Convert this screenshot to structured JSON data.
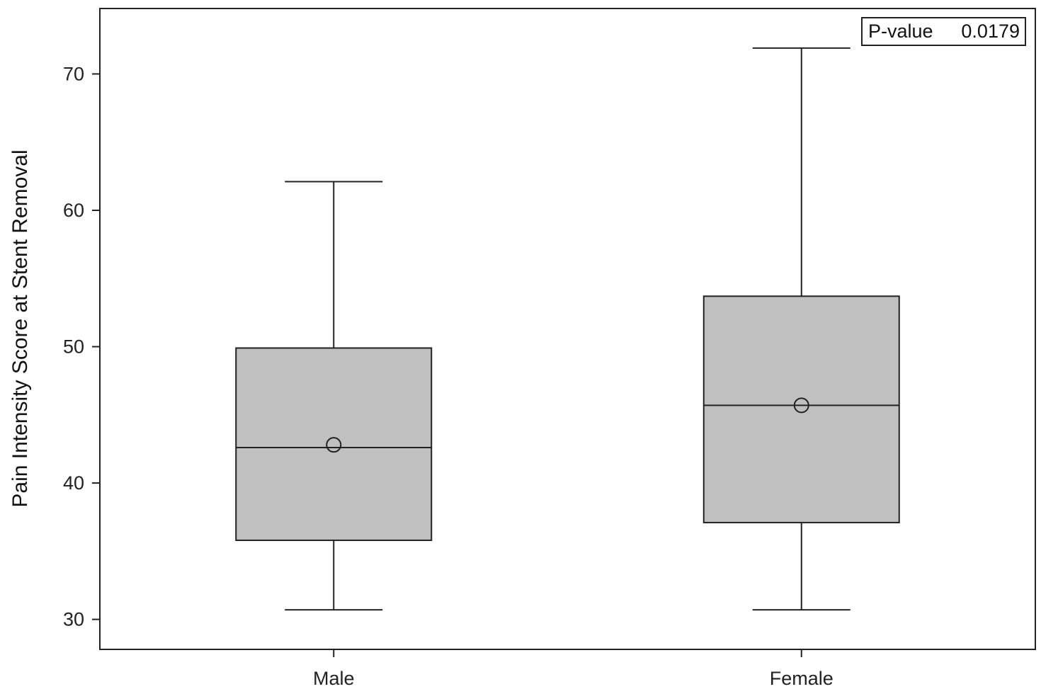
{
  "chart_data": {
    "type": "boxplot",
    "title": "",
    "xlabel": "",
    "ylabel": "Pain Intensity Score at Stent Removal",
    "ylim": [
      27.8,
      74.8
    ],
    "yticks": [
      30,
      40,
      50,
      60,
      70
    ],
    "grid": false,
    "categories": [
      "Male",
      "Female"
    ],
    "boxes": [
      {
        "category": "Male",
        "min": 30.7,
        "q1": 35.8,
        "median": 42.6,
        "q3": 49.9,
        "max": 62.1,
        "mean": 42.8
      },
      {
        "category": "Female",
        "min": 30.7,
        "q1": 37.1,
        "median": 45.7,
        "q3": 53.7,
        "max": 71.9,
        "mean": 45.7
      }
    ],
    "annotation": {
      "label": "P-value",
      "value": "0.0179",
      "position": "top-right"
    },
    "colors": {
      "box_fill": "#c0c0c0",
      "line": "#222222"
    }
  }
}
